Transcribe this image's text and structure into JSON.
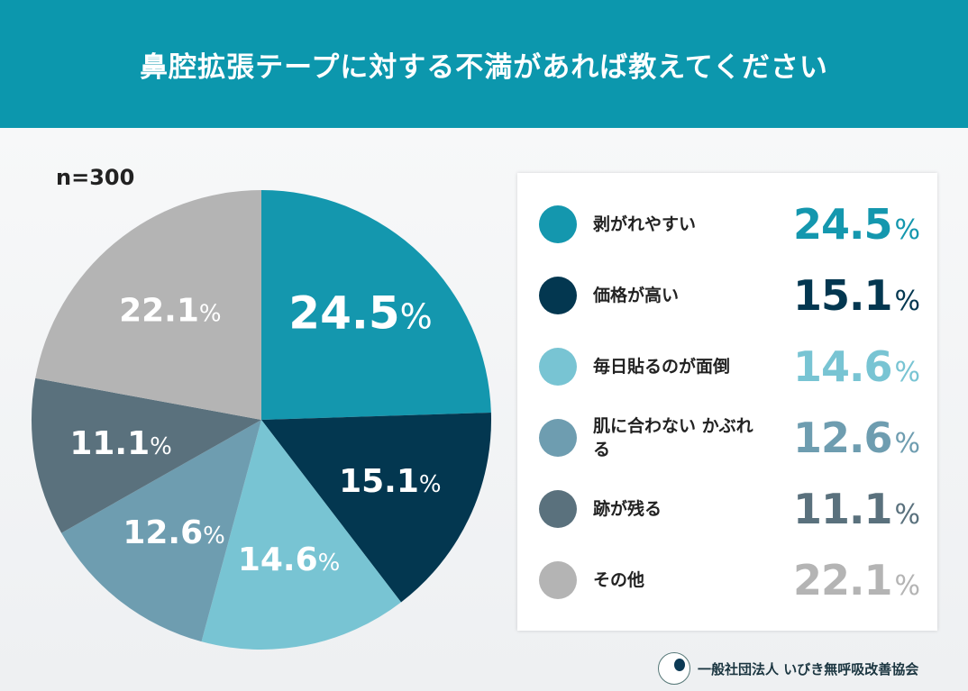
{
  "header": {
    "title": "鼻腔拡張テープに対する不満があれば教えてください"
  },
  "sample": "n=300",
  "footer": {
    "org": "一般社団法人 いびき無呼吸改善協会"
  },
  "chart_data": {
    "type": "pie",
    "title": "鼻腔拡張テープに対する不満があれば教えてください",
    "unit": "%",
    "categories": [
      "剥がれやすい",
      "価格が高い",
      "毎日貼るのが面倒",
      "肌に合わない かぶれる",
      "跡が残る",
      "その他"
    ],
    "values": [
      24.5,
      15.1,
      14.6,
      12.6,
      11.1,
      22.1
    ],
    "labels": [
      "24.5",
      "15.1",
      "14.6",
      "12.6",
      "11.1",
      "22.1"
    ],
    "colors": [
      "#1497ae",
      "#033750",
      "#78c4d3",
      "#6e9db0",
      "#5a717d",
      "#b4b4b4"
    ],
    "legend_placement": "right",
    "start": "top, clockwise"
  }
}
